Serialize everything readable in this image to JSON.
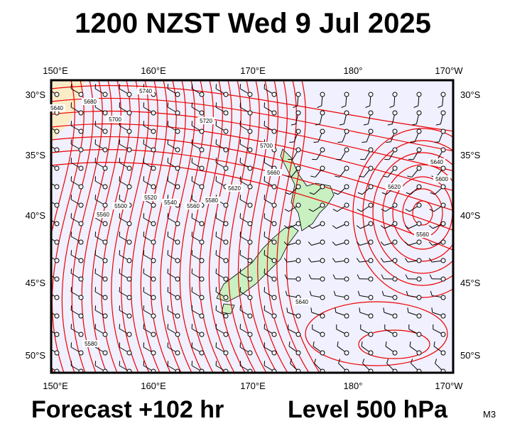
{
  "title": "1200 NZST Wed 9 Jul 2025",
  "longitude_labels": [
    "150°E",
    "160°E",
    "170°E",
    "180°",
    "170°W"
  ],
  "latitude_labels": [
    "30°S",
    "35°S",
    "40°S",
    "45°S",
    "50°S"
  ],
  "contour_labels": [
    "5740",
    "5680",
    "5640",
    "5700",
    "5720",
    "5700",
    "5660",
    "5620",
    "5580",
    "5560",
    "5540",
    "5520",
    "5500",
    "5560",
    "5640",
    "5620",
    "5600",
    "5560",
    "5640",
    "5580"
  ],
  "footer": {
    "forecast": "Forecast +102 hr",
    "level": "Level 500 hPa",
    "code": "M3"
  }
}
